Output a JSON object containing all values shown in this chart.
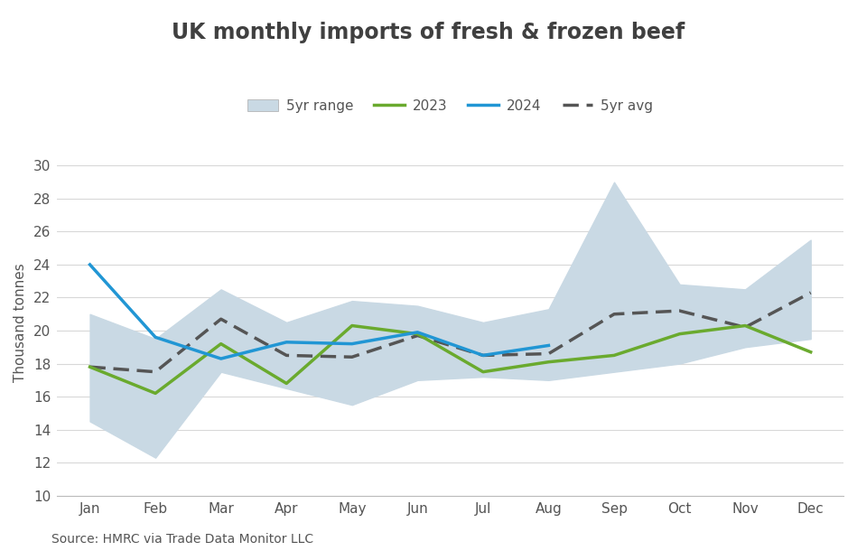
{
  "title": "UK monthly imports of fresh & frozen beef",
  "ylabel": "Thousand tonnes",
  "source": "Source: HMRC via Trade Data Monitor LLC",
  "months": [
    "Jan",
    "Feb",
    "Mar",
    "Apr",
    "May",
    "Jun",
    "Jul",
    "Aug",
    "Sep",
    "Oct",
    "Nov",
    "Dec"
  ],
  "range_low": [
    14.5,
    12.3,
    17.5,
    16.5,
    15.5,
    17.0,
    17.2,
    17.0,
    17.5,
    18.0,
    19.0,
    19.5
  ],
  "range_high": [
    21.0,
    19.5,
    22.5,
    20.5,
    21.8,
    21.5,
    20.5,
    21.3,
    29.0,
    22.8,
    22.5,
    25.5
  ],
  "avg_5yr": [
    17.8,
    17.5,
    20.7,
    18.5,
    18.4,
    19.7,
    18.5,
    18.6,
    21.0,
    21.2,
    20.2,
    22.3
  ],
  "line_2023": [
    17.8,
    16.2,
    19.2,
    16.8,
    20.3,
    19.8,
    17.5,
    18.1,
    18.5,
    19.8,
    20.3,
    18.7
  ],
  "line_2024": [
    24.0,
    19.6,
    18.3,
    19.3,
    19.2,
    19.9,
    18.5,
    19.1,
    null,
    null,
    null,
    null
  ],
  "ylim": [
    10,
    31
  ],
  "yticks": [
    10,
    12,
    14,
    16,
    18,
    20,
    22,
    24,
    26,
    28,
    30
  ],
  "color_range": "#c9d9e4",
  "color_range_edge": "#c9d9e4",
  "color_2023": "#6aaa2e",
  "color_2024": "#2196d4",
  "color_avg": "#555555",
  "color_title": "#404040",
  "color_tick_label": "#555555",
  "color_source": "#555555",
  "background_color": "#ffffff",
  "title_fontsize": 17,
  "legend_fontsize": 11,
  "axis_fontsize": 11,
  "tick_fontsize": 11,
  "source_fontsize": 10,
  "line_width": 2.5,
  "legend_labels": [
    "5yr range",
    "2023",
    "2024",
    "5yr avg"
  ]
}
